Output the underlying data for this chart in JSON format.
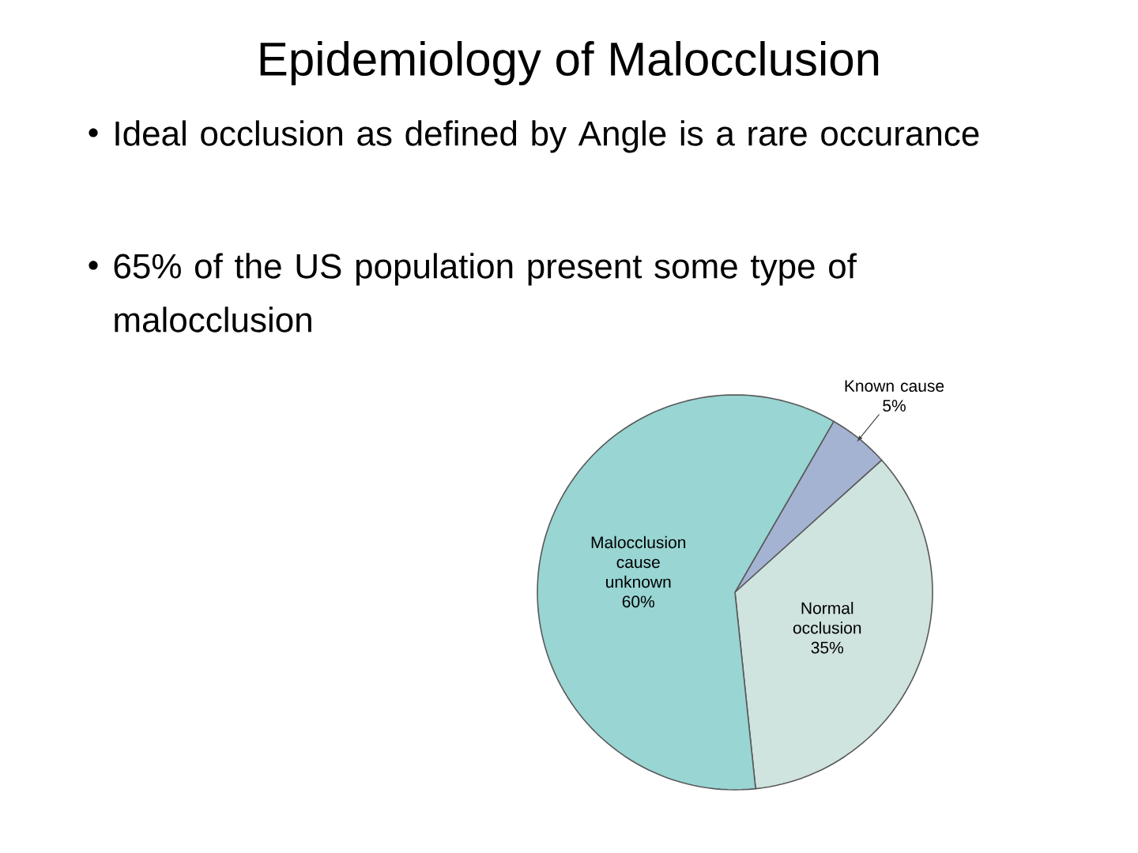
{
  "chart_data": {
    "type": "pie",
    "title": "Epidemiology of Malocclusion",
    "annotations": [
      "Ideal occlusion as defined by Angle is a rare occurance",
      "65% of the US population present some type of malocclusion"
    ],
    "categories": [
      "Known cause",
      "Normal occlusion",
      "Malocclusion cause unknown"
    ],
    "values": [
      5,
      35,
      60
    ],
    "value_labels": [
      "5%",
      "35%",
      "60%"
    ],
    "colors": [
      "#a4b3d2",
      "#cfe3df",
      "#98d5d3"
    ]
  }
}
